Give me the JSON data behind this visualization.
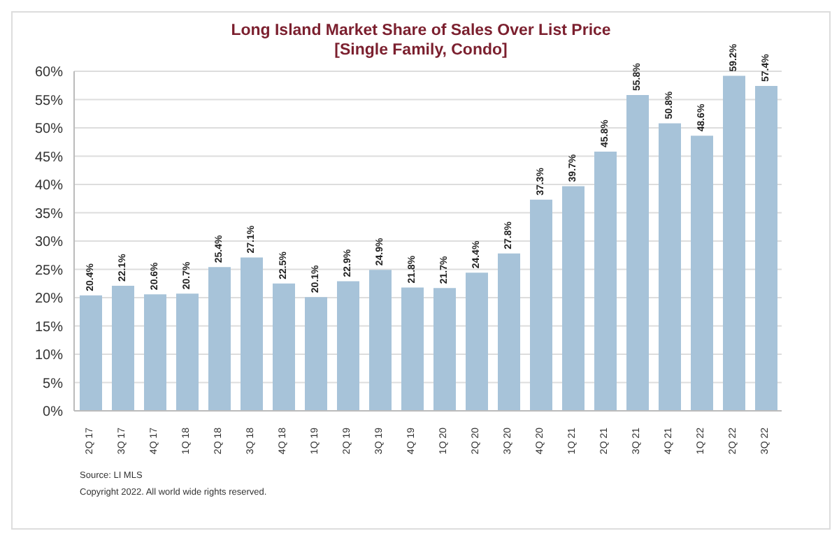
{
  "chart_data": {
    "type": "bar",
    "title": "Long Island Market Share of Sales Over List Price",
    "subtitle": "[Single Family, Condo]",
    "categories": [
      "2Q 17",
      "3Q 17",
      "4Q 17",
      "1Q 18",
      "2Q 18",
      "3Q 18",
      "4Q 18",
      "1Q 19",
      "2Q 19",
      "3Q 19",
      "4Q 19",
      "1Q 20",
      "2Q 20",
      "3Q 20",
      "4Q 20",
      "1Q 21",
      "2Q 21",
      "3Q 21",
      "4Q 21",
      "1Q 22",
      "2Q 22",
      "3Q 22"
    ],
    "values": [
      20.4,
      22.1,
      20.6,
      20.7,
      25.4,
      27.1,
      22.5,
      20.1,
      22.9,
      24.9,
      21.8,
      21.7,
      24.4,
      27.8,
      37.3,
      39.7,
      45.8,
      55.8,
      50.8,
      48.6,
      59.2,
      57.4
    ],
    "value_labels": [
      "20.4%",
      "22.1%",
      "20.6%",
      "20.7%",
      "25.4%",
      "27.1%",
      "22.5%",
      "20.1%",
      "22.9%",
      "24.9%",
      "21.8%",
      "21.7%",
      "24.4%",
      "27.8%",
      "37.3%",
      "39.7%",
      "45.8%",
      "55.8%",
      "50.8%",
      "48.6%",
      "59.2%",
      "57.4%"
    ],
    "color": "#a7c3d9",
    "ylim": [
      0,
      60
    ],
    "yticks": [
      {
        "value": 0,
        "label": "0%"
      },
      {
        "value": 5,
        "label": "5%"
      },
      {
        "value": 10,
        "label": "10%"
      },
      {
        "value": 15,
        "label": "15%"
      },
      {
        "value": 20,
        "label": "20%"
      },
      {
        "value": 25,
        "label": "25%"
      },
      {
        "value": 30,
        "label": "30%"
      },
      {
        "value": 35,
        "label": "35%"
      },
      {
        "value": 40,
        "label": "40%"
      },
      {
        "value": 45,
        "label": "45%"
      },
      {
        "value": 50,
        "label": "50%"
      },
      {
        "value": 55,
        "label": "55%"
      },
      {
        "value": 60,
        "label": "60%"
      }
    ],
    "grid": "y",
    "annotations": [
      "Source:  LI MLS",
      "Copyright 2022. All world wide rights reserved."
    ]
  }
}
